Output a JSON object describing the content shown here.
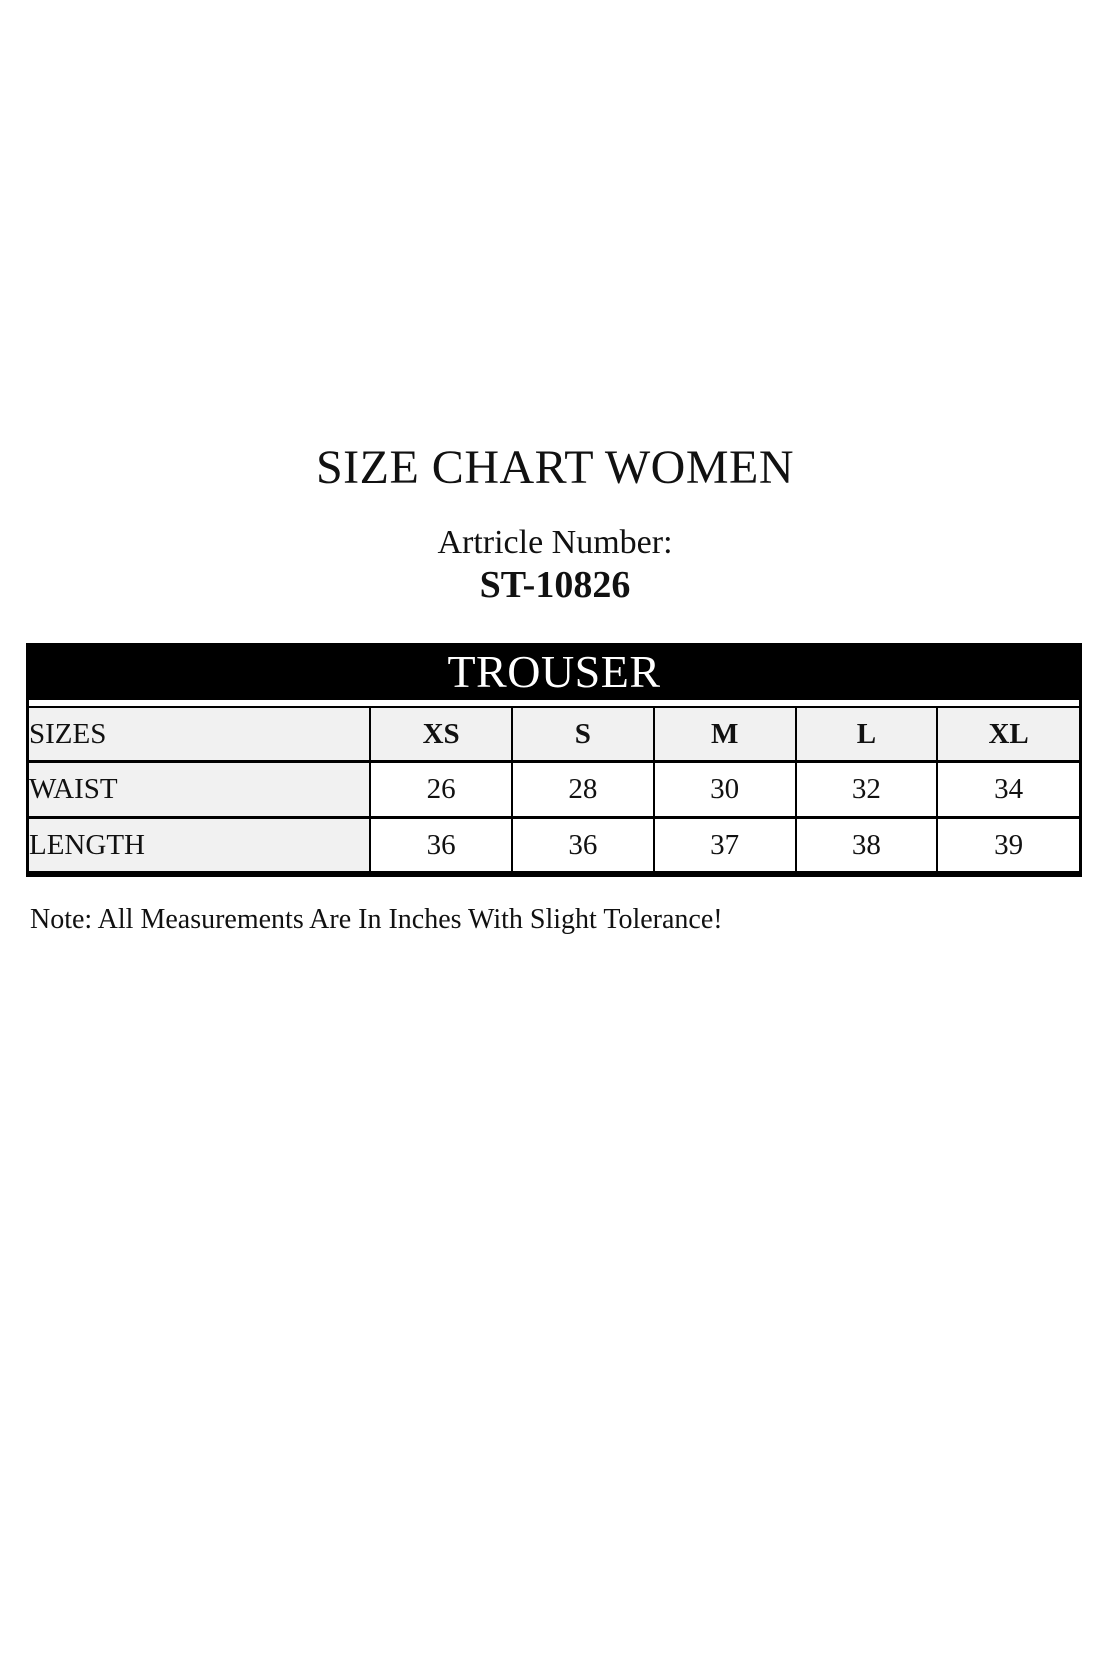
{
  "page": {
    "title": "SIZE CHART WOMEN",
    "article_label": "Artricle Number:",
    "article_number": "ST-10826",
    "note": "Note: All Measurements Are In Inches With Slight Tolerance!"
  },
  "size_chart": {
    "category": "TROUSER",
    "columns": [
      "SIZES",
      "XS",
      "S",
      "M",
      "L",
      "XL"
    ],
    "rows": [
      {
        "label": "WAIST",
        "values": [
          "26",
          "28",
          "30",
          "32",
          "34"
        ]
      },
      {
        "label": "LENGTH",
        "values": [
          "36",
          "36",
          "37",
          "38",
          "39"
        ]
      }
    ]
  },
  "colors": {
    "band_bg": "#000000",
    "band_text": "#ffffff",
    "header_bg": "#f1f1f1",
    "row_label_bg": "#f1f1f1",
    "data_cell_bg": "#ffffff",
    "border": "#000000",
    "page_bg": "#ffffff",
    "text": "#111111"
  }
}
